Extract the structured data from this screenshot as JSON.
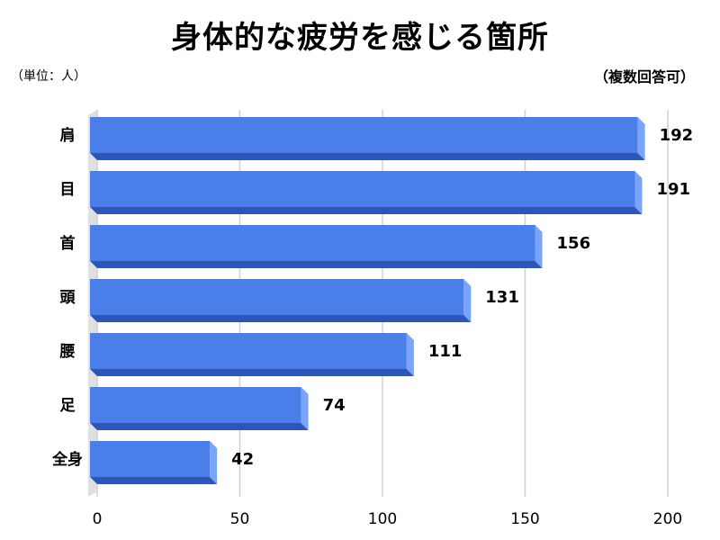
{
  "header": {
    "title": "身体的な疲労を感じる箇所",
    "unit": "（単位：人）",
    "note": "（複数回答可）"
  },
  "colors": {
    "bar_face": "#4a7fea",
    "bar_top": "#5b8ff5",
    "bar_bottom": "#2e55b8",
    "bar_side": "#7aa4f7",
    "grid": "#d0d0d0",
    "wall": "#e0e0e0"
  },
  "chart_data": {
    "type": "bar",
    "orientation": "horizontal",
    "style": "3d",
    "title": "身体的な疲労を感じる箇所",
    "unit_label": "（単位：人）",
    "note": "（複数回答可）",
    "categories": [
      "肩",
      "目",
      "首",
      "頭",
      "腰",
      "足",
      "全身"
    ],
    "values": [
      192,
      191,
      156,
      131,
      111,
      74,
      42
    ],
    "data_labels": [
      "192",
      "191",
      "156",
      "131",
      "111",
      "74",
      "42"
    ],
    "xlim": [
      0,
      200
    ],
    "x_ticks": [
      0,
      50,
      100,
      150,
      200
    ],
    "x_tick_labels": [
      "0",
      "50",
      "100",
      "150",
      "200"
    ],
    "grid": true,
    "legend": "none"
  }
}
